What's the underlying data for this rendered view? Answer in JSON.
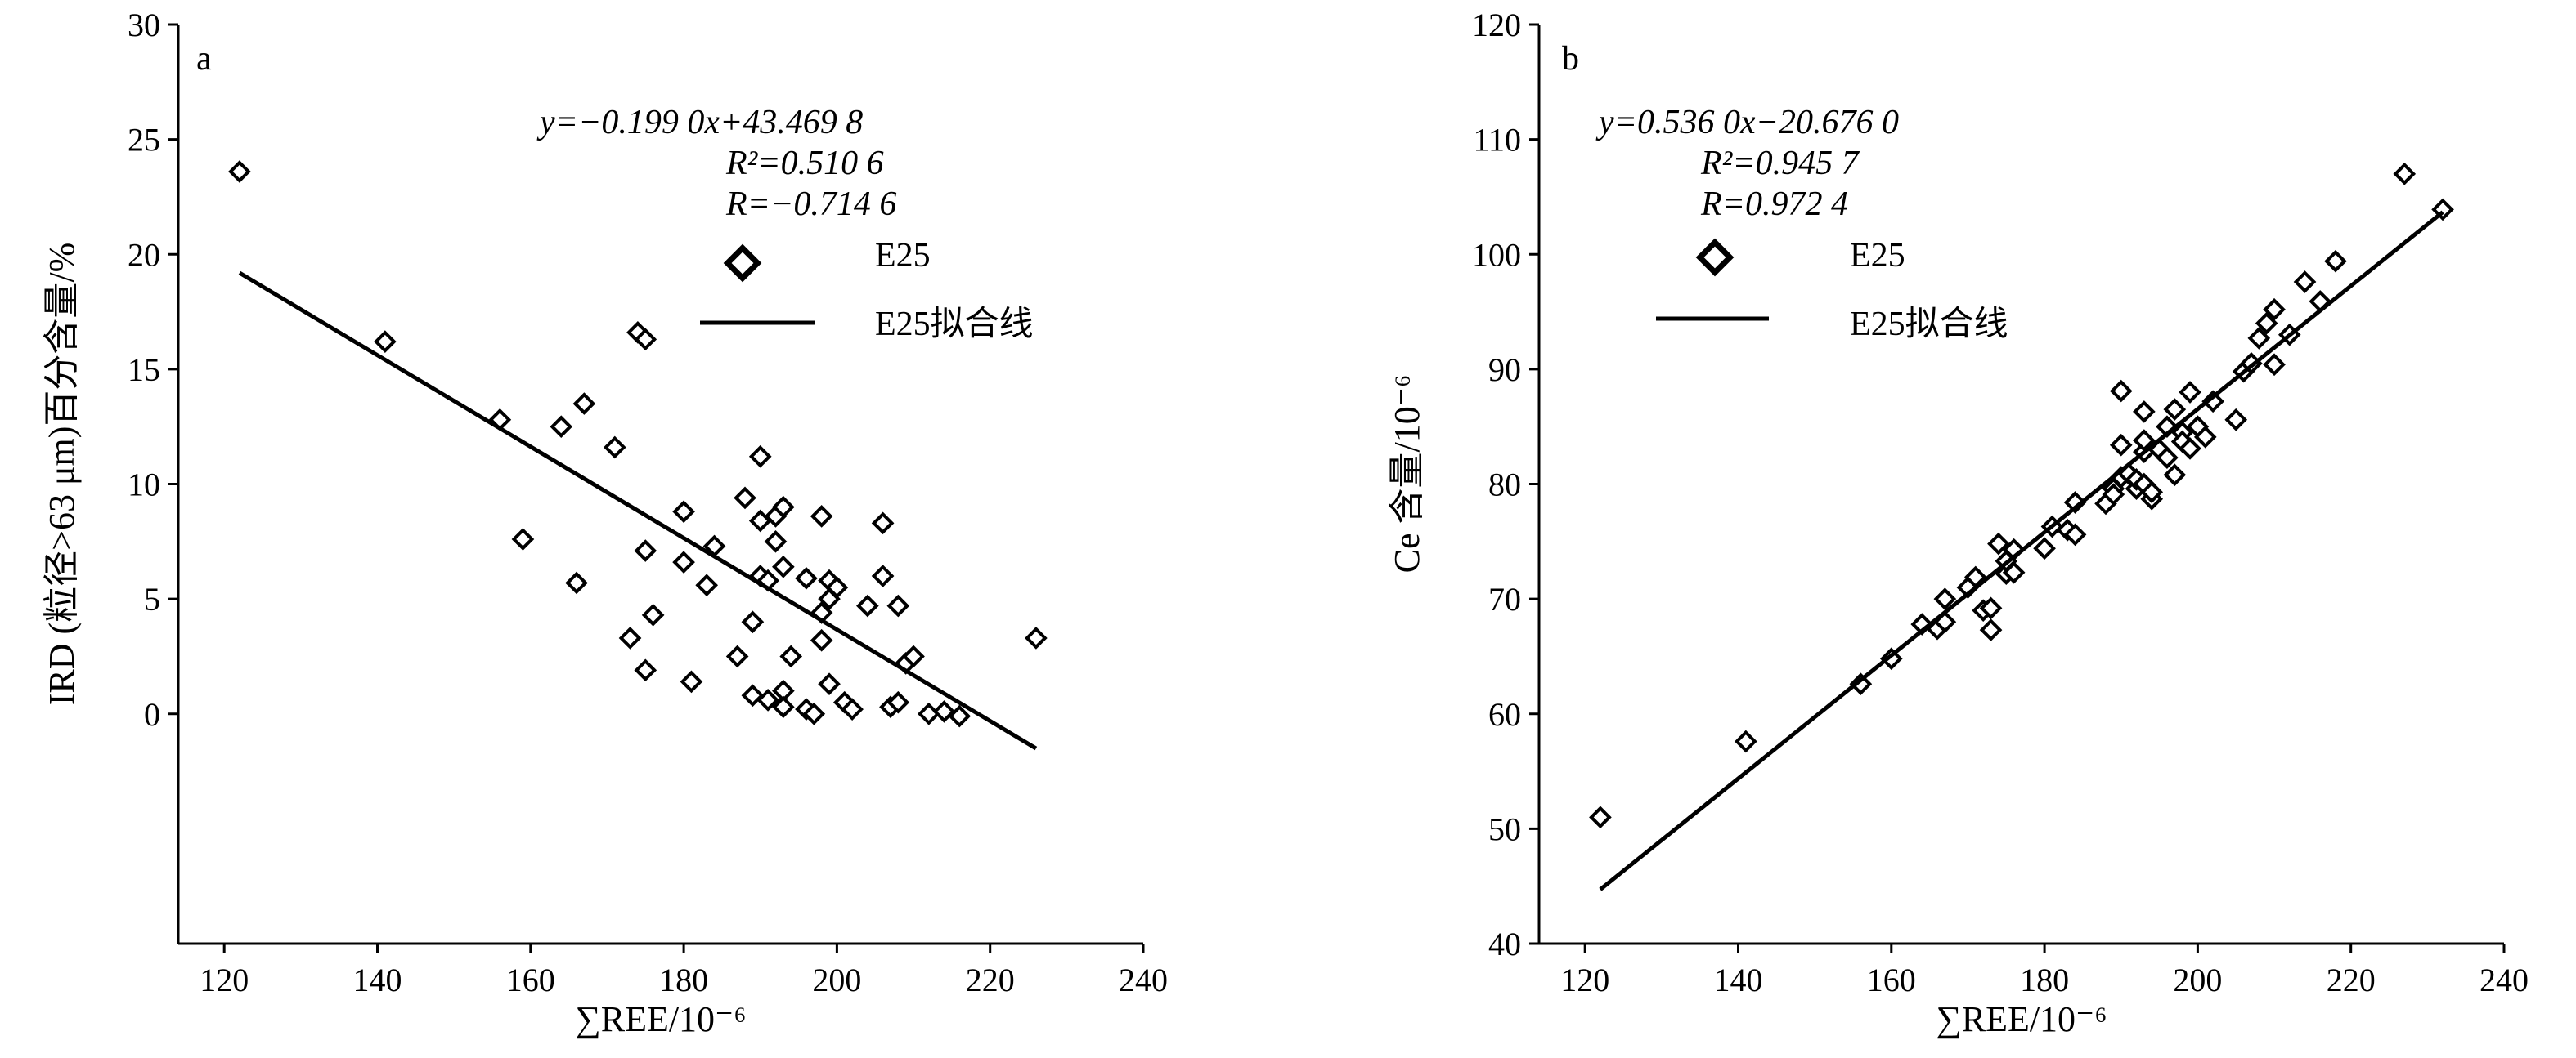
{
  "chart_data": [
    {
      "type": "scatter",
      "panel_label": "a",
      "xlabel": "∑REE/10⁻⁶",
      "ylabel": "IRD (粒径>63 μm)百分含量/%",
      "xlim": [
        114,
        240
      ],
      "ylim": [
        -10,
        30
      ],
      "xticks": [
        "120",
        "140",
        "160",
        "180",
        "200",
        "220",
        "240"
      ],
      "yticks": [
        "0",
        "5",
        "10",
        "15",
        "20",
        "25",
        "30"
      ],
      "equation": "y=−0.199 0x+43.469 8",
      "r2_text": "R²=0.510 6",
      "r_text": "R=−0.714 6",
      "legend": {
        "marker_label": "E25",
        "line_label": "E25拟合线",
        "placement": "top-right"
      },
      "fit": {
        "slope": -0.199,
        "intercept": 43.4698,
        "x_range": [
          122,
          226
        ]
      },
      "series": [
        {
          "name": "E25",
          "points": [
            [
              122,
              23.6
            ],
            [
              141,
              16.2
            ],
            [
              156,
              12.8
            ],
            [
              159,
              7.6
            ],
            [
              164,
              12.5
            ],
            [
              166,
              5.7
            ],
            [
              167,
              13.5
            ],
            [
              171,
              11.6
            ],
            [
              173,
              3.3
            ],
            [
              174,
              16.6
            ],
            [
              175,
              16.3
            ],
            [
              175,
              1.9
            ],
            [
              175,
              7.1
            ],
            [
              176,
              4.3
            ],
            [
              180,
              6.6
            ],
            [
              180,
              8.8
            ],
            [
              181,
              1.4
            ],
            [
              183,
              5.6
            ],
            [
              184,
              7.3
            ],
            [
              187,
              2.5
            ],
            [
              188,
              9.4
            ],
            [
              189,
              4.0
            ],
            [
              189,
              0.8
            ],
            [
              190,
              8.4
            ],
            [
              190,
              6.0
            ],
            [
              190,
              11.2
            ],
            [
              191,
              5.8
            ],
            [
              191,
              0.6
            ],
            [
              192,
              8.6
            ],
            [
              192,
              7.5
            ],
            [
              193,
              9.0
            ],
            [
              193,
              6.4
            ],
            [
              193,
              1.0
            ],
            [
              193,
              0.3
            ],
            [
              194,
              2.5
            ],
            [
              196,
              5.9
            ],
            [
              196,
              0.2
            ],
            [
              197,
              0.0
            ],
            [
              198,
              4.4
            ],
            [
              198,
              8.6
            ],
            [
              198,
              3.2
            ],
            [
              199,
              5.8
            ],
            [
              199,
              5.0
            ],
            [
              199,
              1.3
            ],
            [
              200,
              5.5
            ],
            [
              201,
              0.5
            ],
            [
              202,
              0.2
            ],
            [
              204,
              4.7
            ],
            [
              206,
              8.3
            ],
            [
              206,
              6.0
            ],
            [
              207,
              0.3
            ],
            [
              208,
              0.5
            ],
            [
              208,
              4.7
            ],
            [
              209,
              2.2
            ],
            [
              210,
              2.5
            ],
            [
              212,
              0.0
            ],
            [
              214,
              0.1
            ],
            [
              216,
              -0.1
            ],
            [
              226,
              3.3
            ]
          ]
        }
      ]
    },
    {
      "type": "scatter",
      "panel_label": "b",
      "xlabel": "∑REE/10⁻⁶",
      "ylabel": "Ce 含量/10⁻⁶",
      "xlim": [
        114,
        240
      ],
      "ylim": [
        40,
        120
      ],
      "xticks": [
        "120",
        "140",
        "160",
        "180",
        "200",
        "220",
        "240"
      ],
      "yticks": [
        "40",
        "50",
        "60",
        "70",
        "80",
        "90",
        "100",
        "110",
        "120"
      ],
      "equation": "y=0.536 0x−20.676 0",
      "r2_text": "R²=0.945 7",
      "r_text": "R=0.972 4",
      "legend": {
        "marker_label": "E25",
        "line_label": "E25拟合线",
        "placement": "top-left"
      },
      "fit": {
        "slope": 0.536,
        "intercept": -20.676,
        "x_range": [
          122,
          232
        ]
      },
      "series": [
        {
          "name": "E25",
          "points": [
            [
              122,
              51.0
            ],
            [
              141,
              57.6
            ],
            [
              156,
              62.6
            ],
            [
              160,
              64.8
            ],
            [
              164,
              67.8
            ],
            [
              166,
              67.4
            ],
            [
              167,
              70.0
            ],
            [
              167,
              68.0
            ],
            [
              170,
              71.0
            ],
            [
              171,
              71.9
            ],
            [
              172,
              69.0
            ],
            [
              173,
              69.2
            ],
            [
              173,
              67.3
            ],
            [
              174,
              74.8
            ],
            [
              175,
              72.2
            ],
            [
              175,
              73.3
            ],
            [
              176,
              74.3
            ],
            [
              176,
              72.3
            ],
            [
              180,
              74.4
            ],
            [
              181,
              76.3
            ],
            [
              183,
              76.0
            ],
            [
              184,
              75.6
            ],
            [
              184,
              78.4
            ],
            [
              188,
              78.3
            ],
            [
              189,
              79.6
            ],
            [
              189,
              79.1
            ],
            [
              190,
              80.6
            ],
            [
              190,
              83.4
            ],
            [
              190,
              88.1
            ],
            [
              191,
              80.9
            ],
            [
              192,
              79.6
            ],
            [
              192,
              80.4
            ],
            [
              193,
              80.0
            ],
            [
              193,
              82.8
            ],
            [
              193,
              83.8
            ],
            [
              193,
              86.3
            ],
            [
              194,
              78.7
            ],
            [
              194,
              79.3
            ],
            [
              195,
              83.0
            ],
            [
              196,
              82.3
            ],
            [
              196,
              85.0
            ],
            [
              197,
              86.5
            ],
            [
              197,
              80.8
            ],
            [
              198,
              84.5
            ],
            [
              198,
              83.7
            ],
            [
              199,
              83.1
            ],
            [
              199,
              88.0
            ],
            [
              200,
              85.0
            ],
            [
              201,
              84.1
            ],
            [
              202,
              87.2
            ],
            [
              205,
              85.6
            ],
            [
              206,
              89.8
            ],
            [
              207,
              90.5
            ],
            [
              208,
              92.7
            ],
            [
              209,
              94.0
            ],
            [
              210,
              95.2
            ],
            [
              210,
              90.4
            ],
            [
              212,
              93.0
            ],
            [
              214,
              97.6
            ],
            [
              216,
              95.9
            ],
            [
              218,
              99.4
            ],
            [
              227,
              107.0
            ],
            [
              232,
              103.9
            ]
          ]
        }
      ]
    }
  ]
}
